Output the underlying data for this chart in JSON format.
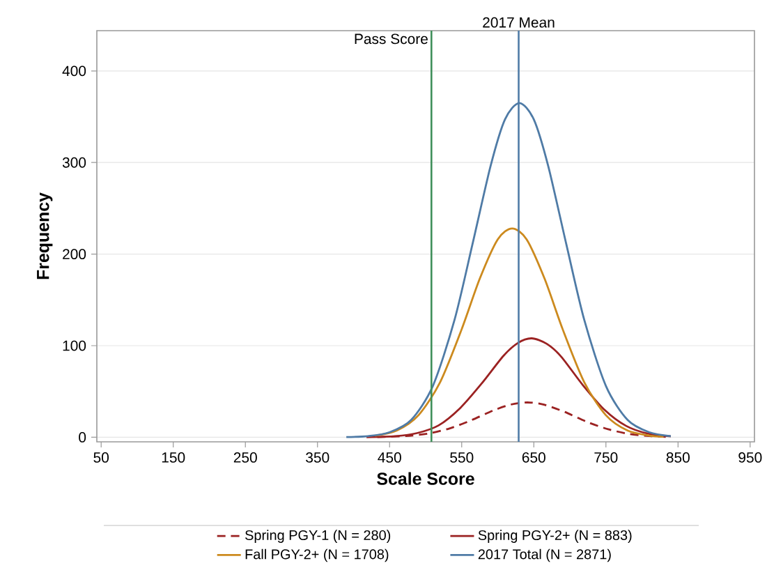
{
  "chart_data": {
    "type": "line",
    "xlabel": "Scale Score",
    "ylabel": "Frequency",
    "xlim": [
      44,
      956
    ],
    "ylim": [
      -5,
      444
    ],
    "xticks": [
      50,
      150,
      250,
      350,
      450,
      550,
      650,
      750,
      850,
      950
    ],
    "yticks": [
      0,
      100,
      200,
      300,
      400
    ],
    "grid": "y",
    "legend": "bottom",
    "marker": "none",
    "ref_lines": [
      {
        "axis": "x",
        "value": 508,
        "label": "Pass Score",
        "color": "#3f8f5a"
      },
      {
        "axis": "x",
        "value": 629,
        "label": "2017 Mean",
        "color": "#4f7ba6"
      }
    ],
    "series": [
      {
        "name": "Spring PGY-1 (N = 280)",
        "color": "#9b2222",
        "line_style": "dashed",
        "x": [
          433,
          473,
          503,
          533,
          563,
          593,
          618,
          641,
          663,
          693,
          723,
          753,
          783,
          813,
          833
        ],
        "values": [
          0.2,
          1.4,
          4,
          9.6,
          18.5,
          29,
          35.7,
          38,
          35.8,
          27.6,
          17,
          8.8,
          3.5,
          1.1,
          0.5
        ]
      },
      {
        "name": "Spring PGY-2+ (N = 883)",
        "color": "#9b2222",
        "line_style": "solid",
        "x": [
          418,
          458,
          488,
          518,
          548,
          578,
          608,
          628,
          647,
          668,
          688,
          718,
          748,
          778,
          808,
          840
        ],
        "values": [
          0.1,
          1.2,
          4.5,
          13,
          32,
          59,
          89,
          103,
          108,
          102,
          88,
          57,
          30,
          12.4,
          4,
          1
        ]
      },
      {
        "name": "Fall PGY-2+ (N = 1708)",
        "color": "#cc8a1e",
        "line_style": "solid",
        "x": [
          430,
          460,
          490,
          520,
          550,
          575,
          600,
          620,
          640,
          665,
          690,
          720,
          750,
          780,
          810,
          830
        ],
        "values": [
          1.8,
          7.3,
          24,
          60,
          118,
          173,
          216,
          228,
          216,
          173,
          118,
          60,
          24,
          7.3,
          1.8,
          0.6
        ]
      },
      {
        "name": "2017 Total (N = 2871)",
        "color": "#4f7ba6",
        "line_style": "solid",
        "x": [
          390,
          420,
          450,
          480,
          510,
          540,
          565,
          590,
          610,
          630,
          650,
          670,
          695,
          720,
          750,
          780,
          810,
          840
        ],
        "values": [
          0.2,
          1.2,
          5.5,
          19,
          56,
          128,
          211,
          296,
          347,
          365,
          347,
          296,
          211,
          128,
          56,
          19,
          5.5,
          1.2
        ]
      }
    ]
  }
}
